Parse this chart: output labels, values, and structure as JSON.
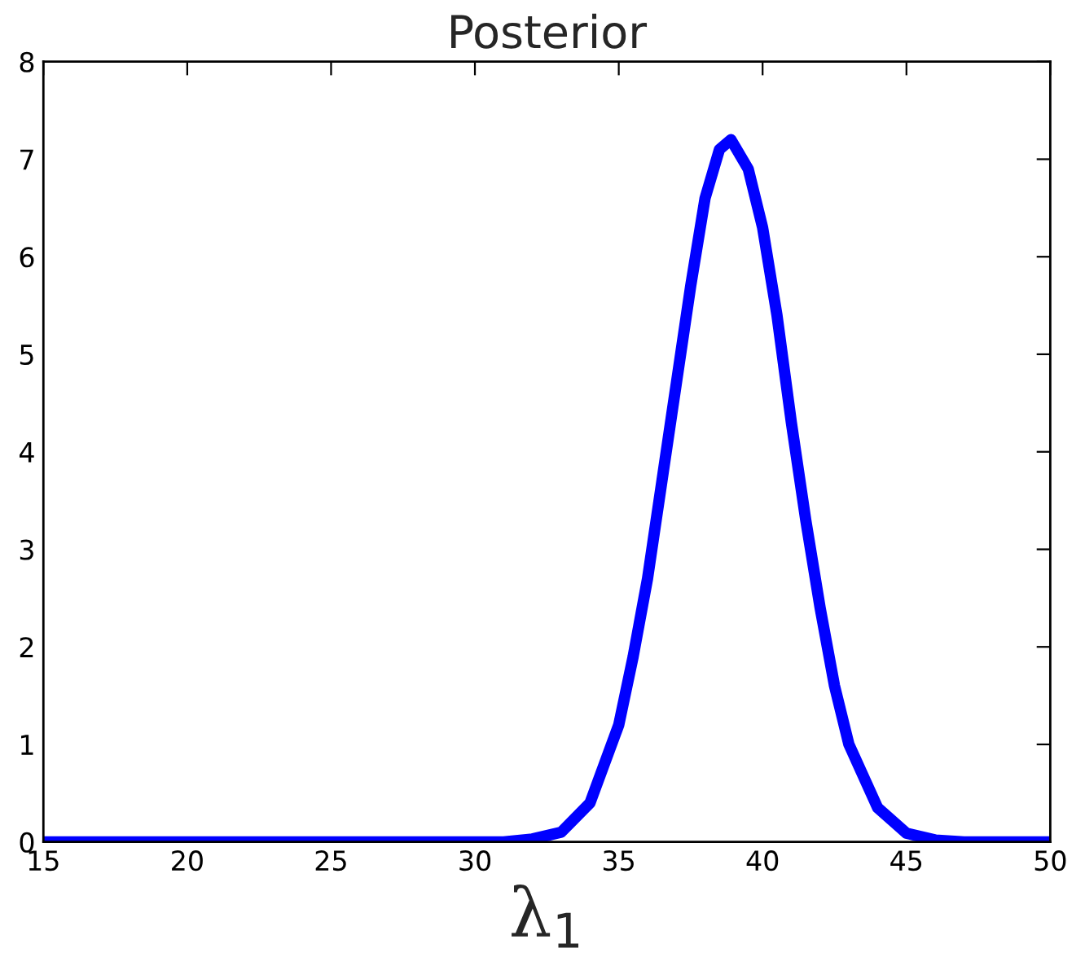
{
  "chart_data": {
    "type": "line",
    "title": "Posterior",
    "xlabel": "λ$_{1}$",
    "x": [
      15,
      20,
      25,
      30,
      31,
      32,
      33,
      34,
      35,
      35.5,
      36,
      36.5,
      37,
      37.5,
      38,
      38.5,
      38.9,
      39.5,
      40,
      40.5,
      41,
      41.5,
      42,
      42.5,
      43,
      44,
      45,
      46,
      47,
      50
    ],
    "series": [
      {
        "color": "#0000ff",
        "values": [
          0,
          0,
          0,
          0,
          0,
          0.03,
          0.1,
          0.4,
          1.2,
          1.9,
          2.7,
          3.7,
          4.7,
          5.7,
          6.6,
          7.1,
          7.2,
          6.9,
          6.3,
          5.4,
          4.3,
          3.3,
          2.4,
          1.6,
          1.0,
          0.35,
          0.09,
          0.02,
          0,
          0
        ]
      }
    ],
    "xlim": [
      15,
      50
    ],
    "xticks": [
      15,
      20,
      25,
      30,
      35,
      40,
      45,
      50
    ],
    "ylim": [
      0,
      8
    ],
    "yticks": [
      0,
      1,
      2,
      3,
      4,
      5,
      6,
      7,
      8
    ],
    "grid": false,
    "legend": false,
    "marker": "none",
    "line_style": "solid"
  }
}
